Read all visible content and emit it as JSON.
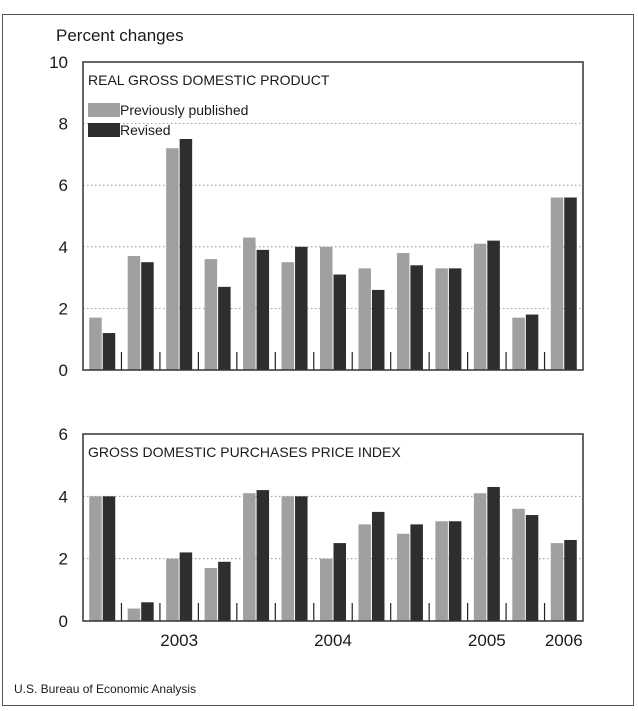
{
  "ytitle": "Percent changes",
  "source": "U.S. Bureau of Economic Analysis",
  "colors": {
    "previous": "#a0a0a0",
    "revised": "#2e2e2e",
    "grid": "#888888",
    "frame": "#333333"
  },
  "xaxis": {
    "year_labels": [
      {
        "label": "2003",
        "center_quarter": 2
      },
      {
        "label": "2004",
        "center_quarter": 6
      },
      {
        "label": "2005",
        "center_quarter": 10
      },
      {
        "label": "2006",
        "center_quarter": 12
      }
    ]
  },
  "chart_data": [
    {
      "type": "bar",
      "title": "REAL GROSS DOMESTIC PRODUCT",
      "ylabel": "Percent changes",
      "ylim": [
        0,
        10
      ],
      "yticks": [
        0,
        2,
        4,
        6,
        8,
        10
      ],
      "grid": true,
      "legend": "top-left",
      "categories": [
        "2003 Q1",
        "2003 Q2",
        "2003 Q3",
        "2003 Q4",
        "2004 Q1",
        "2004 Q2",
        "2004 Q3",
        "2004 Q4",
        "2005 Q1",
        "2005 Q2",
        "2005 Q3",
        "2005 Q4",
        "2006 Q1"
      ],
      "series": [
        {
          "name": "Previously published",
          "values": [
            1.7,
            3.7,
            7.2,
            3.6,
            4.3,
            3.5,
            4.0,
            3.3,
            3.8,
            3.3,
            4.1,
            1.7,
            5.6
          ]
        },
        {
          "name": "Revised",
          "values": [
            1.2,
            3.5,
            7.5,
            2.7,
            3.9,
            4.0,
            3.1,
            2.6,
            3.4,
            3.3,
            4.2,
            1.8,
            5.6
          ]
        }
      ]
    },
    {
      "type": "bar",
      "title": "GROSS DOMESTIC PURCHASES PRICE INDEX",
      "ylim": [
        0,
        6
      ],
      "yticks": [
        0,
        2,
        4,
        6
      ],
      "grid": true,
      "categories": [
        "2003 Q1",
        "2003 Q2",
        "2003 Q3",
        "2003 Q4",
        "2004 Q1",
        "2004 Q2",
        "2004 Q3",
        "2004 Q4",
        "2005 Q1",
        "2005 Q2",
        "2005 Q3",
        "2005 Q4",
        "2006 Q1"
      ],
      "series": [
        {
          "name": "Previously published",
          "values": [
            4.0,
            0.4,
            2.0,
            1.7,
            4.1,
            4.0,
            2.0,
            3.1,
            2.8,
            3.2,
            4.1,
            3.6,
            2.5
          ]
        },
        {
          "name": "Revised",
          "values": [
            4.0,
            0.6,
            2.2,
            1.9,
            4.2,
            4.0,
            2.5,
            3.5,
            3.1,
            3.2,
            4.3,
            3.4,
            2.6
          ]
        }
      ]
    }
  ]
}
